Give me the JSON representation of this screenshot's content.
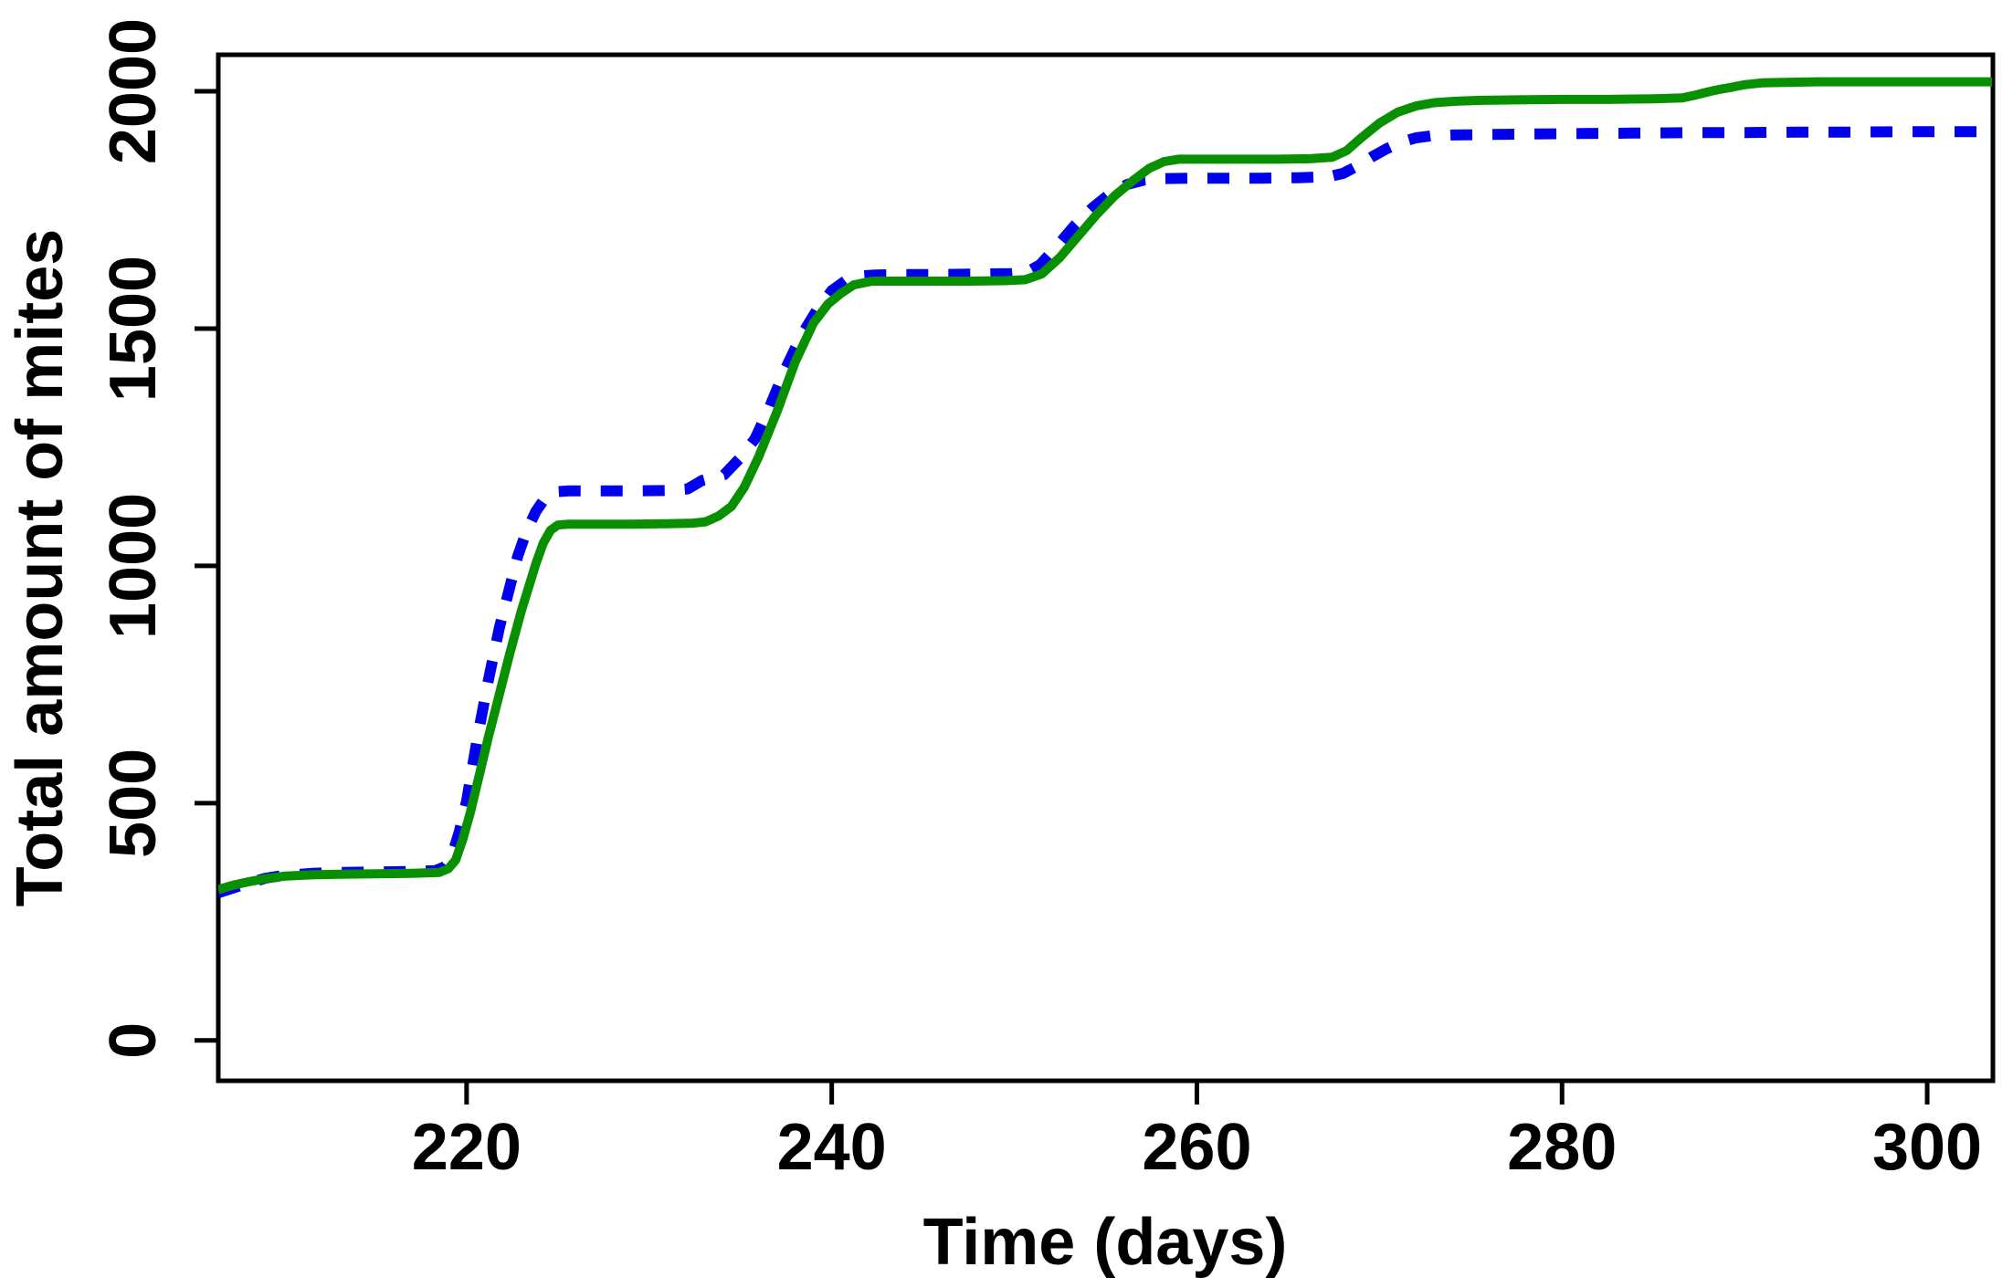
{
  "figure": {
    "background": "#ffffff",
    "axis_color": "#000000",
    "text_color": "#000000"
  },
  "chart_data": {
    "type": "line",
    "title": "",
    "xlabel": "Time (days)",
    "ylabel": "Total amount of mites",
    "x_ticks": [
      "220",
      "240",
      "260",
      "280",
      "300"
    ],
    "x_tick_values": [
      220,
      240,
      260,
      280,
      300
    ],
    "y_ticks": [
      "0",
      "500",
      "1000",
      "1500",
      "2000"
    ],
    "y_tick_values": [
      0,
      500,
      1000,
      1500,
      2000
    ],
    "x_range": [
      206.4,
      303.6
    ],
    "y_range": [
      -85,
      2077
    ],
    "grid": false,
    "legend": "none",
    "series": [
      {
        "id": "blue-dashed",
        "line_style": "dashed",
        "color": "#0000ee",
        "stroke_width": 12,
        "points": [
          [
            206.4,
            311
          ],
          [
            207.2,
            321
          ],
          [
            208,
            331
          ],
          [
            209,
            342
          ],
          [
            210,
            348
          ],
          [
            211.5,
            352
          ],
          [
            213,
            354
          ],
          [
            215,
            355
          ],
          [
            217,
            356
          ],
          [
            218.3,
            358
          ],
          [
            218.8,
            366
          ],
          [
            219.2,
            390
          ],
          [
            219.6,
            440
          ],
          [
            220,
            505
          ],
          [
            220.6,
            640
          ],
          [
            221.2,
            760
          ],
          [
            221.8,
            870
          ],
          [
            222.3,
            945
          ],
          [
            222.8,
            1020
          ],
          [
            223.3,
            1075
          ],
          [
            223.8,
            1115
          ],
          [
            224.3,
            1143
          ],
          [
            224.8,
            1156
          ],
          [
            225.6,
            1158
          ],
          [
            227,
            1158
          ],
          [
            229,
            1158
          ],
          [
            231,
            1159
          ],
          [
            232.1,
            1162
          ],
          [
            232.9,
            1180
          ],
          [
            234.1,
            1192
          ],
          [
            235,
            1228
          ],
          [
            235.8,
            1268
          ],
          [
            236.6,
            1335
          ],
          [
            237.4,
            1410
          ],
          [
            238.3,
            1483
          ],
          [
            239.2,
            1540
          ],
          [
            240,
            1580
          ],
          [
            240.8,
            1602
          ],
          [
            241.6,
            1611
          ],
          [
            242.4,
            1613
          ],
          [
            244,
            1614
          ],
          [
            246,
            1614
          ],
          [
            248,
            1615
          ],
          [
            249.8,
            1616
          ],
          [
            250.7,
            1619
          ],
          [
            251.4,
            1634
          ],
          [
            252.3,
            1672
          ],
          [
            253.3,
            1717
          ],
          [
            254.3,
            1755
          ],
          [
            255.3,
            1786
          ],
          [
            256.2,
            1804
          ],
          [
            257.1,
            1813
          ],
          [
            258,
            1816
          ],
          [
            259.5,
            1817
          ],
          [
            261.5,
            1817
          ],
          [
            263.5,
            1817
          ],
          [
            265.5,
            1818
          ],
          [
            267.2,
            1820
          ],
          [
            268,
            1827
          ],
          [
            268.8,
            1843
          ],
          [
            269.6,
            1862
          ],
          [
            270.4,
            1879
          ],
          [
            271.2,
            1893
          ],
          [
            272,
            1902
          ],
          [
            272.8,
            1906
          ],
          [
            274,
            1908
          ],
          [
            276,
            1909
          ],
          [
            278.5,
            1910
          ],
          [
            281,
            1911
          ],
          [
            284,
            1912
          ],
          [
            287,
            1913
          ],
          [
            290,
            1913
          ],
          [
            293,
            1914
          ],
          [
            296,
            1914
          ],
          [
            299,
            1915
          ],
          [
            303.55,
            1915
          ]
        ]
      },
      {
        "id": "green-solid",
        "line_style": "solid",
        "color": "#089000",
        "stroke_width": 10,
        "points": [
          [
            206.4,
            318
          ],
          [
            207.2,
            327
          ],
          [
            208,
            334
          ],
          [
            209,
            341
          ],
          [
            210,
            346
          ],
          [
            211.5,
            349
          ],
          [
            213,
            350
          ],
          [
            215,
            351
          ],
          [
            217,
            352
          ],
          [
            218.5,
            354
          ],
          [
            219,
            362
          ],
          [
            219.4,
            380
          ],
          [
            219.8,
            425
          ],
          [
            220.2,
            480
          ],
          [
            220.7,
            560
          ],
          [
            221.2,
            640
          ],
          [
            221.8,
            730
          ],
          [
            222.4,
            820
          ],
          [
            223,
            905
          ],
          [
            223.4,
            955
          ],
          [
            223.8,
            1005
          ],
          [
            224.2,
            1048
          ],
          [
            224.6,
            1075
          ],
          [
            225,
            1086
          ],
          [
            225.6,
            1088
          ],
          [
            227,
            1088
          ],
          [
            229,
            1088
          ],
          [
            231,
            1089
          ],
          [
            232.4,
            1090
          ],
          [
            233.1,
            1093
          ],
          [
            233.8,
            1105
          ],
          [
            234.5,
            1125
          ],
          [
            235.2,
            1165
          ],
          [
            236,
            1230
          ],
          [
            237,
            1325
          ],
          [
            238,
            1430
          ],
          [
            239,
            1512
          ],
          [
            239.8,
            1552
          ],
          [
            240.5,
            1574
          ],
          [
            241.2,
            1592
          ],
          [
            242.2,
            1600
          ],
          [
            243.5,
            1600
          ],
          [
            245.5,
            1600
          ],
          [
            247.5,
            1600
          ],
          [
            249.5,
            1601
          ],
          [
            250.6,
            1603
          ],
          [
            251.5,
            1615
          ],
          [
            252.5,
            1650
          ],
          [
            253.5,
            1695
          ],
          [
            254.5,
            1740
          ],
          [
            255.5,
            1780
          ],
          [
            256.5,
            1812
          ],
          [
            257.4,
            1838
          ],
          [
            258.2,
            1852
          ],
          [
            259,
            1857
          ],
          [
            260.5,
            1857
          ],
          [
            262.5,
            1857
          ],
          [
            264.5,
            1857
          ],
          [
            266.2,
            1858
          ],
          [
            267.4,
            1861
          ],
          [
            268.2,
            1875
          ],
          [
            269,
            1902
          ],
          [
            270,
            1933
          ],
          [
            271,
            1956
          ],
          [
            272,
            1969
          ],
          [
            273,
            1976
          ],
          [
            274.2,
            1979
          ],
          [
            275.6,
            1981
          ],
          [
            277.5,
            1982
          ],
          [
            280,
            1983
          ],
          [
            282.5,
            1983
          ],
          [
            285,
            1984
          ],
          [
            286.6,
            1986
          ],
          [
            287.4,
            1993
          ],
          [
            288,
            1999
          ],
          [
            288.6,
            2004
          ],
          [
            289.2,
            2008
          ],
          [
            290,
            2014
          ],
          [
            291,
            2018
          ],
          [
            292.2,
            2019
          ],
          [
            294,
            2020
          ],
          [
            297,
            2020
          ],
          [
            300,
            2020
          ],
          [
            303.55,
            2020
          ]
        ]
      }
    ]
  }
}
